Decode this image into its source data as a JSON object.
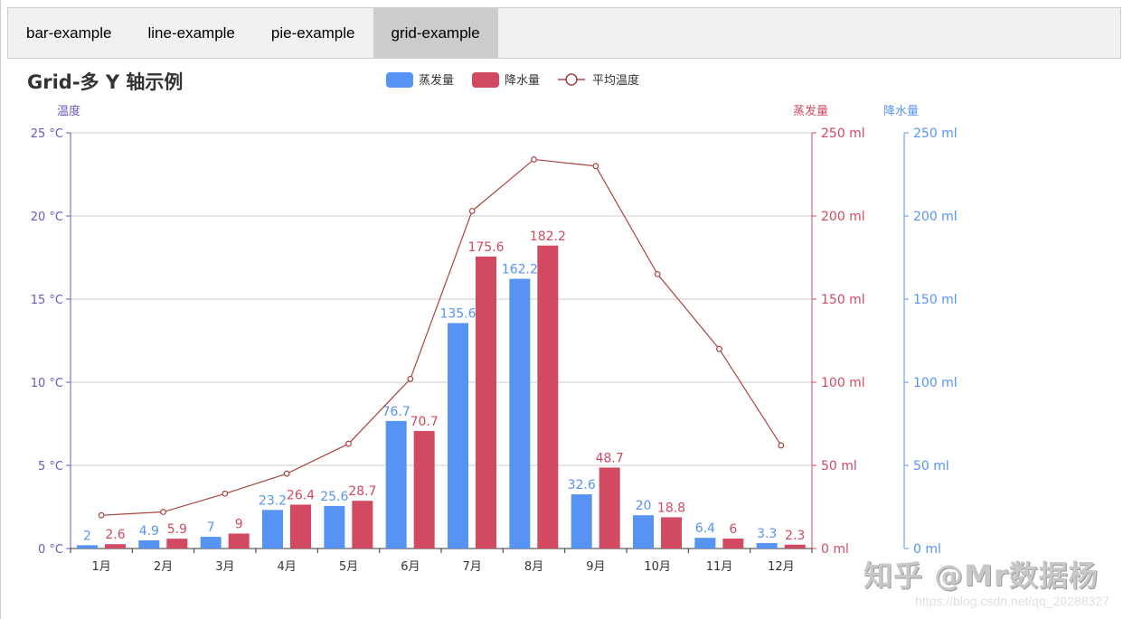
{
  "tabs": [
    {
      "label": "bar-example",
      "active": false
    },
    {
      "label": "line-example",
      "active": false
    },
    {
      "label": "pie-example",
      "active": false
    },
    {
      "label": "grid-example",
      "active": true
    }
  ],
  "colors": {
    "evaporation": "#5793f3",
    "precipitation": "#d14a61",
    "temperature": "#a94442",
    "axis_left": "#675bba",
    "axis_right1": "#d14a61",
    "axis_right2": "#5793f3",
    "grid": "#cccccc"
  },
  "watermark": {
    "text": "知乎 @Mr数据杨",
    "url": "https://blog.csdn.net/qq_20288327"
  },
  "chart_data": {
    "type": "bar",
    "title": "Grid-多 Y 轴示例",
    "categories": [
      "1月",
      "2月",
      "3月",
      "4月",
      "5月",
      "6月",
      "7月",
      "8月",
      "9月",
      "10月",
      "11月",
      "12月"
    ],
    "legend": [
      "蒸发量",
      "降水量",
      "平均温度"
    ],
    "legend_position": "top",
    "grid": true,
    "series": [
      {
        "name": "蒸发量",
        "type": "bar",
        "yAxis": "降水量",
        "values": [
          2,
          4.9,
          7,
          23.2,
          25.6,
          76.7,
          135.6,
          162.2,
          32.6,
          20,
          6.4,
          3.3
        ]
      },
      {
        "name": "降水量",
        "type": "bar",
        "yAxis": "蒸发量",
        "values": [
          2.6,
          5.9,
          9,
          26.4,
          28.7,
          70.7,
          175.6,
          182.2,
          48.7,
          18.8,
          6,
          2.3
        ]
      },
      {
        "name": "平均温度",
        "type": "line",
        "yAxis": "温度",
        "values": [
          2.0,
          2.2,
          3.3,
          4.5,
          6.3,
          10.2,
          20.3,
          23.4,
          23.0,
          16.5,
          12.0,
          6.2
        ]
      }
    ],
    "y_axes": [
      {
        "name": "温度",
        "position": "left",
        "ylim": [
          0,
          25
        ],
        "interval": 5,
        "unit": " °C",
        "ticks": [
          "0 °C",
          "5 °C",
          "10 °C",
          "15 °C",
          "20 °C",
          "25 °C"
        ]
      },
      {
        "name": "蒸发量",
        "position": "right",
        "ylim": [
          0,
          250
        ],
        "interval": 50,
        "unit": " ml",
        "ticks": [
          "0 ml",
          "50 ml",
          "100 ml",
          "150 ml",
          "200 ml",
          "250 ml"
        ]
      },
      {
        "name": "降水量",
        "position": "right-offset",
        "ylim": [
          0,
          250
        ],
        "interval": 50,
        "unit": " ml",
        "ticks": [
          "0 ml",
          "50 ml",
          "100 ml",
          "150 ml",
          "200 ml",
          "250 ml"
        ]
      }
    ]
  }
}
